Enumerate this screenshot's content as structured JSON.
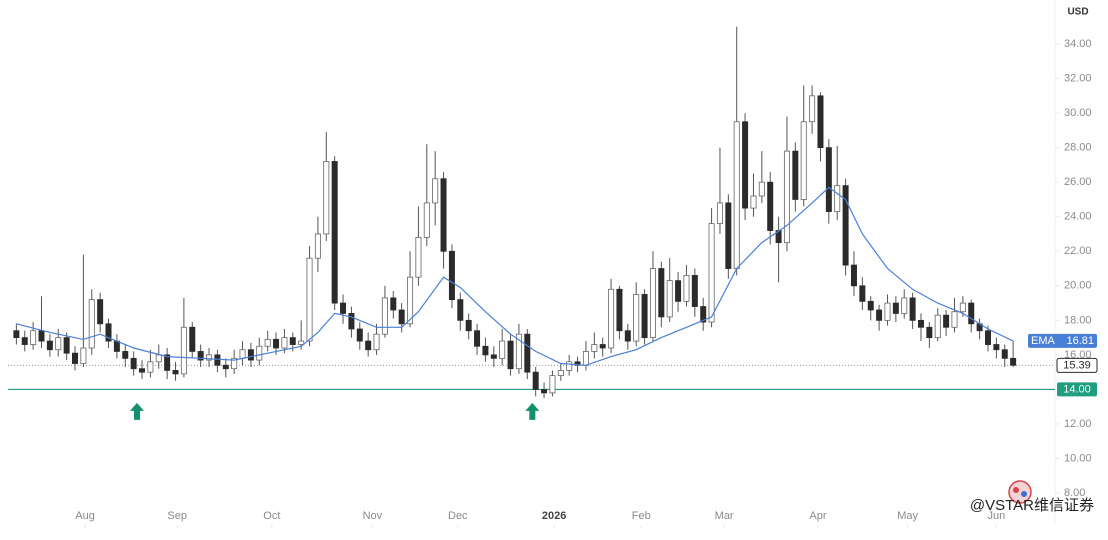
{
  "chart_data": {
    "type": "candlestick",
    "currency": "USD",
    "watermark": "@VSTAR维信证券",
    "up_color": "#ffffff",
    "down_color": "#2b2b2b",
    "wick_color": "#555555",
    "grid": false,
    "xlim": [
      -1,
      124
    ],
    "ylim": [
      6.15,
      36.55
    ],
    "yticks": [
      {
        "value": 8,
        "label": "8.00"
      },
      {
        "value": 10,
        "label": "10.00"
      },
      {
        "value": 12,
        "label": "12.00"
      },
      {
        "value": 14,
        "label": "14.00"
      },
      {
        "value": 16,
        "label": "16.00"
      },
      {
        "value": 18,
        "label": "18.00"
      },
      {
        "value": 20,
        "label": "20.00"
      },
      {
        "value": 22,
        "label": "22.00"
      },
      {
        "value": 24,
        "label": "24.00"
      },
      {
        "value": 26,
        "label": "26.00"
      },
      {
        "value": 28,
        "label": "28.00"
      },
      {
        "value": 30,
        "label": "30.00"
      },
      {
        "value": 32,
        "label": "32.00"
      },
      {
        "value": 34,
        "label": "34.00"
      }
    ],
    "xticks": [
      {
        "value": 8.2,
        "label": "Aug"
      },
      {
        "value": 19.2,
        "label": "Sep"
      },
      {
        "value": 30.5,
        "label": "Oct"
      },
      {
        "value": 42.5,
        "label": "Nov"
      },
      {
        "value": 52.7,
        "label": "Dec"
      },
      {
        "value": 64.2,
        "label": "2026"
      },
      {
        "value": 74.6,
        "label": "Feb"
      },
      {
        "value": 84.5,
        "label": "Mar"
      },
      {
        "value": 95.7,
        "label": "Apr"
      },
      {
        "value": 106.4,
        "label": "May"
      },
      {
        "value": 117,
        "label": "Jun"
      }
    ],
    "x": [
      0,
      1,
      2,
      3,
      4,
      5,
      6,
      7,
      8,
      9,
      10,
      11,
      12,
      13,
      14,
      15,
      16,
      17,
      18,
      19,
      20,
      21,
      22,
      23,
      24,
      25,
      26,
      27,
      28,
      29,
      30,
      31,
      32,
      33,
      34,
      35,
      36,
      37,
      38,
      39,
      40,
      41,
      42,
      43,
      44,
      45,
      46,
      47,
      48,
      49,
      50,
      51,
      52,
      53,
      54,
      55,
      56,
      57,
      58,
      59,
      60,
      61,
      62,
      63,
      64,
      65,
      66,
      67,
      68,
      69,
      70,
      71,
      72,
      73,
      74,
      75,
      76,
      77,
      78,
      79,
      80,
      81,
      82,
      83,
      84,
      85,
      86,
      87,
      88,
      89,
      90,
      91,
      92,
      93,
      94,
      95,
      96,
      97,
      98,
      99,
      100,
      101,
      102,
      103,
      104,
      105,
      106,
      107,
      108,
      109,
      110,
      111,
      112,
      113,
      114,
      115,
      116,
      117,
      118,
      119
    ],
    "open": [
      17.4,
      17.0,
      16.6,
      17.4,
      16.8,
      16.3,
      17.0,
      16.1,
      15.5,
      16.4,
      19.2,
      17.8,
      16.8,
      16.2,
      15.8,
      15.2,
      15.0,
      15.6,
      16.0,
      15.1,
      14.9,
      17.6,
      16.2,
      15.7,
      16.0,
      15.4,
      15.2,
      15.8,
      16.3,
      15.7,
      16.5,
      16.9,
      16.4,
      17.0,
      16.6,
      16.8,
      21.6,
      23.0,
      27.2,
      19.0,
      18.4,
      17.5,
      16.8,
      16.3,
      17.2,
      19.3,
      18.6,
      17.8,
      20.5,
      22.8,
      24.8,
      26.2,
      22.0,
      19.2,
      18.0,
      17.4,
      16.5,
      16.0,
      15.8,
      16.8,
      15.2,
      17.2,
      15.0,
      14.0,
      13.8,
      14.8,
      15.1,
      15.6,
      15.4,
      16.2,
      16.6,
      16.4,
      19.8,
      17.4,
      16.8,
      19.5,
      17.0,
      21.0,
      18.2,
      20.3,
      19.1,
      20.6,
      18.8,
      17.9,
      23.6,
      24.8,
      21.0,
      29.5,
      24.5,
      25.2,
      26.0,
      23.2,
      22.5,
      27.8,
      25.0,
      29.5,
      31.0,
      28.0,
      24.3,
      25.8,
      21.2,
      20.0,
      19.1,
      18.6,
      18.0,
      19.0,
      18.4,
      19.3,
      18.0,
      17.6,
      17.0,
      18.3,
      17.6,
      18.5,
      19.0,
      17.8,
      17.4,
      16.6,
      16.3,
      15.8
    ],
    "high": [
      17.8,
      17.4,
      17.9,
      19.4,
      17.2,
      17.5,
      17.3,
      16.5,
      21.8,
      19.8,
      19.6,
      18.1,
      17.2,
      16.6,
      16.2,
      15.7,
      16.3,
      16.6,
      16.4,
      15.6,
      19.3,
      17.9,
      16.6,
      16.4,
      16.3,
      15.8,
      16.3,
      16.8,
      16.7,
      17.0,
      17.4,
      17.3,
      17.5,
      17.3,
      18.0,
      22.3,
      24.0,
      28.9,
      27.5,
      19.5,
      18.8,
      17.9,
      17.3,
      17.8,
      20.0,
      19.7,
      19.0,
      22.0,
      24.6,
      28.2,
      27.8,
      26.6,
      22.4,
      19.6,
      18.4,
      17.8,
      17.0,
      16.5,
      17.5,
      17.2,
      17.8,
      17.5,
      15.3,
      14.4,
      15.1,
      15.5,
      16.0,
      15.9,
      16.8,
      17.3,
      17.0,
      20.4,
      20.0,
      17.8,
      20.2,
      19.8,
      22.0,
      21.4,
      21.6,
      20.8,
      21.2,
      21.0,
      19.3,
      24.5,
      28.0,
      25.3,
      35.0,
      30.0,
      26.5,
      27.8,
      26.6,
      24.0,
      29.8,
      28.3,
      31.6,
      31.6,
      31.2,
      28.5,
      28.1,
      26.2,
      22.0,
      20.5,
      19.4,
      18.9,
      19.5,
      19.4,
      19.8,
      19.6,
      18.4,
      17.9,
      18.7,
      18.6,
      19.3,
      19.4,
      19.2,
      18.1,
      17.7,
      17.0,
      16.6,
      16.8
    ],
    "low": [
      16.6,
      16.2,
      16.3,
      16.4,
      15.9,
      15.9,
      15.7,
      15.1,
      15.3,
      16.0,
      17.3,
      16.4,
      15.8,
      15.3,
      14.8,
      14.6,
      14.7,
      15.2,
      14.6,
      14.5,
      14.7,
      15.8,
      15.3,
      15.3,
      15.0,
      14.7,
      14.9,
      15.4,
      15.3,
      15.4,
      16.2,
      16.0,
      16.1,
      16.2,
      16.3,
      16.5,
      20.8,
      22.6,
      18.6,
      17.8,
      17.0,
      16.3,
      15.9,
      16.0,
      17.0,
      18.1,
      17.3,
      17.6,
      20.0,
      22.3,
      23.5,
      21.0,
      18.7,
      17.4,
      16.9,
      16.0,
      15.6,
      15.3,
      15.4,
      14.8,
      14.9,
      14.6,
      13.6,
      13.5,
      13.6,
      14.5,
      14.8,
      15.0,
      15.1,
      15.8,
      15.9,
      16.1,
      16.9,
      16.3,
      16.5,
      16.6,
      16.8,
      17.6,
      17.9,
      18.5,
      18.8,
      18.2,
      17.4,
      17.6,
      23.0,
      20.4,
      20.6,
      23.8,
      24.0,
      24.8,
      22.4,
      20.2,
      22.0,
      24.3,
      24.6,
      28.8,
      27.2,
      23.6,
      23.8,
      20.6,
      19.4,
      18.6,
      18.0,
      17.4,
      17.7,
      17.9,
      18.1,
      17.5,
      16.8,
      16.4,
      16.8,
      17.1,
      17.3,
      18.2,
      17.3,
      16.9,
      16.2,
      15.8,
      15.3,
      15.3
    ],
    "close": [
      17.0,
      16.6,
      17.4,
      16.8,
      16.3,
      17.0,
      16.1,
      15.5,
      16.4,
      19.2,
      17.8,
      16.8,
      16.2,
      15.8,
      15.2,
      15.0,
      15.6,
      16.0,
      15.1,
      14.9,
      17.6,
      16.2,
      15.7,
      16.0,
      15.4,
      15.2,
      15.8,
      16.3,
      15.7,
      16.5,
      16.9,
      16.4,
      17.0,
      16.6,
      16.8,
      21.6,
      23.0,
      27.2,
      19.0,
      18.4,
      17.5,
      16.8,
      16.3,
      17.2,
      19.3,
      18.6,
      17.8,
      20.5,
      22.8,
      24.8,
      26.2,
      22.0,
      19.2,
      18.0,
      17.4,
      16.5,
      16.0,
      15.8,
      16.8,
      15.2,
      17.2,
      15.0,
      14.0,
      13.8,
      14.8,
      15.1,
      15.6,
      15.4,
      16.2,
      16.6,
      16.4,
      19.8,
      17.4,
      16.8,
      19.5,
      17.0,
      21.0,
      18.2,
      20.3,
      19.1,
      20.6,
      18.8,
      17.9,
      23.6,
      24.8,
      21.0,
      29.5,
      24.5,
      25.2,
      26.0,
      23.2,
      22.5,
      27.8,
      25.0,
      29.5,
      31.0,
      28.0,
      24.3,
      25.8,
      21.2,
      20.0,
      19.1,
      18.6,
      18.0,
      19.0,
      18.4,
      19.3,
      18.0,
      17.6,
      17.0,
      18.3,
      17.6,
      18.5,
      19.0,
      17.8,
      17.4,
      16.6,
      16.3,
      15.8,
      15.4
    ],
    "ema": {
      "name": "EMA",
      "color": "#4a7fd6",
      "x": [
        0,
        4,
        8,
        10,
        14,
        18,
        22,
        26,
        30,
        34,
        36,
        38,
        40,
        43,
        46,
        48,
        51,
        53,
        56,
        59,
        62,
        65,
        68,
        71,
        74,
        77,
        80,
        83,
        86,
        89,
        92,
        95,
        97,
        99,
        101,
        104,
        107,
        110,
        113,
        116,
        119
      ],
      "values": [
        17.8,
        17.3,
        16.9,
        17.2,
        16.4,
        15.9,
        15.8,
        15.7,
        16.1,
        16.5,
        17.3,
        18.4,
        18.2,
        17.6,
        17.6,
        18.5,
        20.5,
        19.9,
        18.5,
        17.2,
        16.2,
        15.5,
        15.4,
        15.9,
        16.3,
        17.0,
        17.6,
        18.2,
        21.0,
        22.5,
        23.5,
        24.8,
        25.7,
        25.0,
        23.0,
        21.0,
        19.8,
        19.0,
        18.4,
        17.5,
        16.81
      ]
    },
    "price_line": {
      "value": 15.39,
      "color": "#2b2b2b"
    },
    "support_line": {
      "value": 14,
      "label": "14.00",
      "color": "#1f9e80"
    },
    "markers": [
      {
        "x": 14.4,
        "value": 12.7,
        "color": "#14906f"
      },
      {
        "x": 61.6,
        "value": 12.7,
        "color": "#14906f"
      }
    ]
  }
}
